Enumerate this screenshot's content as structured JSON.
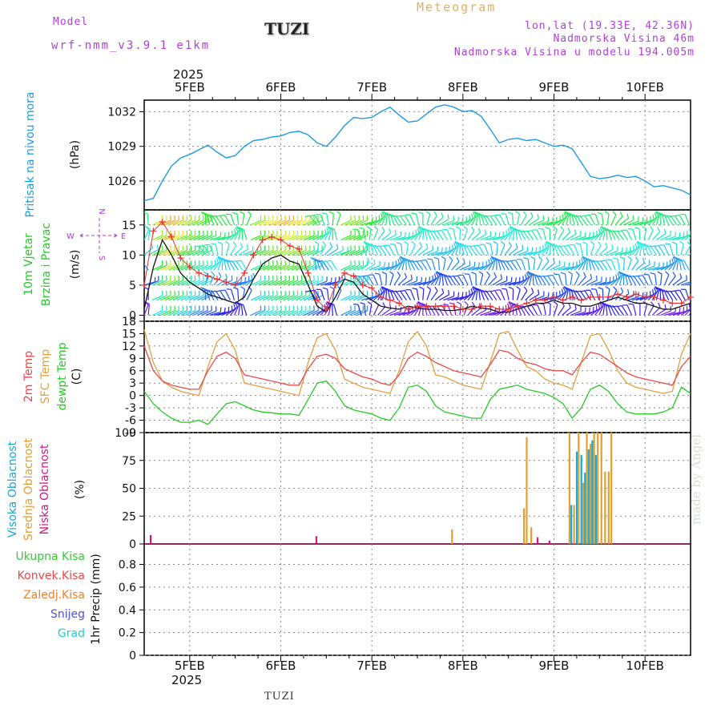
{
  "header": {
    "model_label": "Model",
    "model_name": "wrf-nmm_v3.9.1 e1km",
    "station": "TUZI",
    "title": "Meteogram",
    "lonlat": "lon,lat (19.33E, 42.36N)",
    "elevation": "Nadmorska Visina 46m",
    "model_elevation": "Nadmorska Visina u modelu 194.005m"
  },
  "footer": {
    "station": "TUZI",
    "watermark": "made by Angel"
  },
  "time_axis": {
    "year": "2025",
    "days": [
      "5FEB",
      "6FEB",
      "7FEB",
      "8FEB",
      "9FEB",
      "10FEB"
    ]
  },
  "colors": {
    "pressure": "#1e9be0",
    "temp2m": "#e84a4a",
    "sfc_temp": "#e0a040",
    "dewpoint": "#28c828",
    "high_cloud": "#18a8d8",
    "mid_cloud": "#e0a030",
    "low_cloud": "#d01880",
    "wind_gust": "#e83030",
    "wind_speed": "#111111",
    "grid": "#888888",
    "legend_purple": "#b040d8"
  },
  "chart_data": [
    {
      "type": "line",
      "ylabel": "Pritisak na nivou mora",
      "unit": "(hPa)",
      "yticks": [
        1026,
        1029,
        1032
      ],
      "ylim": [
        1023.5,
        1033
      ],
      "x_days": [
        4.5,
        4.6,
        4.7,
        4.8,
        4.9,
        5.0,
        5.1,
        5.2,
        5.3,
        5.4,
        5.5,
        5.6,
        5.7,
        5.8,
        5.9,
        6.0,
        6.1,
        6.2,
        6.3,
        6.4,
        6.5,
        6.6,
        6.7,
        6.8,
        6.9,
        7.0,
        7.1,
        7.2,
        7.3,
        7.4,
        7.5,
        7.6,
        7.7,
        7.8,
        7.9,
        8.0,
        8.1,
        8.2,
        8.3,
        8.4,
        8.5,
        8.6,
        8.7,
        8.8,
        8.9,
        9.0,
        9.1,
        9.2,
        9.3,
        9.4,
        9.5,
        9.6,
        9.7,
        9.8,
        9.9,
        10.0,
        10.1,
        10.2,
        10.3,
        10.4,
        10.5
      ],
      "series": [
        {
          "color_key": "pressure",
          "values": [
            1024.3,
            1024.5,
            1026.0,
            1027.3,
            1028.0,
            1028.3,
            1028.7,
            1029.1,
            1028.5,
            1028.0,
            1028.2,
            1029.0,
            1029.5,
            1029.6,
            1029.8,
            1029.9,
            1030.2,
            1030.3,
            1030.0,
            1029.3,
            1029.0,
            1029.8,
            1030.8,
            1031.5,
            1031.4,
            1031.5,
            1032.0,
            1032.4,
            1031.7,
            1031.1,
            1031.2,
            1031.8,
            1032.4,
            1032.6,
            1032.4,
            1032.0,
            1032.1,
            1031.6,
            1030.5,
            1029.3,
            1029.6,
            1029.7,
            1029.5,
            1029.6,
            1029.3,
            1029.0,
            1029.1,
            1028.8,
            1027.6,
            1026.4,
            1026.2,
            1026.3,
            1026.5,
            1026.3,
            1026.4,
            1026.0,
            1025.5,
            1025.6,
            1025.4,
            1025.2,
            1024.8
          ]
        }
      ]
    },
    {
      "type": "line",
      "ylabel_lines": [
        "10m Vjetar",
        "Brzina i Pravac"
      ],
      "unit": "(m/s)",
      "yticks": [
        0,
        5,
        10,
        15
      ],
      "ylim": [
        -1,
        17.5
      ],
      "compass": {
        "n": "N",
        "s": "S",
        "w": "W",
        "e": "E"
      },
      "barb_levels_ms": [
        0,
        2.5,
        5,
        7.5,
        10,
        12.5,
        15,
        17.5
      ],
      "x_days": [
        4.5,
        4.6,
        4.7,
        4.8,
        4.9,
        5.0,
        5.1,
        5.2,
        5.3,
        5.4,
        5.5,
        5.6,
        5.7,
        5.8,
        5.9,
        6.0,
        6.1,
        6.2,
        6.3,
        6.4,
        6.5,
        6.6,
        6.7,
        6.8,
        6.9,
        7.0,
        7.1,
        7.2,
        7.3,
        7.4,
        7.5,
        7.6,
        7.7,
        7.8,
        7.9,
        8.0,
        8.1,
        8.2,
        8.3,
        8.4,
        8.5,
        8.6,
        8.7,
        8.8,
        8.9,
        9.0,
        9.1,
        9.2,
        9.3,
        9.4,
        9.5,
        9.6,
        9.7,
        9.8,
        9.9,
        10.0,
        10.1,
        10.2,
        10.3,
        10.4,
        10.5
      ],
      "series": [
        {
          "color_key": "wind_speed",
          "values": [
            1.0,
            8.0,
            12.5,
            10.0,
            7.0,
            5.5,
            4.5,
            3.5,
            3.0,
            2.5,
            2.0,
            3.0,
            6.0,
            8.5,
            9.5,
            10.0,
            9.0,
            8.5,
            5.0,
            1.5,
            0.5,
            3.0,
            6.0,
            5.5,
            3.5,
            2.5,
            1.5,
            1.2,
            1.0,
            1.5,
            1.2,
            1.0,
            1.0,
            0.8,
            0.8,
            1.0,
            1.5,
            1.2,
            1.0,
            0.5,
            0.5,
            1.0,
            1.5,
            2.0,
            2.0,
            2.5,
            2.0,
            2.0,
            1.5,
            1.5,
            2.0,
            2.5,
            3.0,
            2.5,
            2.0,
            2.0,
            1.5,
            1.0,
            1.0,
            1.5,
            2.0
          ]
        },
        {
          "color_key": "wind_gust",
          "marker": "+",
          "values": [
            5.0,
            14.0,
            15.5,
            13.0,
            9.5,
            8.0,
            7.0,
            6.5,
            6.0,
            5.5,
            5.0,
            7.0,
            10.0,
            12.5,
            13.0,
            12.5,
            11.5,
            11.0,
            7.0,
            2.5,
            1.0,
            5.0,
            7.0,
            6.5,
            5.0,
            4.5,
            3.0,
            2.5,
            2.0,
            1.0,
            1.5,
            1.5,
            1.5,
            1.5,
            1.5,
            1.0,
            1.0,
            1.5,
            1.5,
            1.0,
            1.0,
            1.5,
            2.0,
            2.5,
            2.5,
            3.0,
            2.5,
            3.0,
            2.5,
            3.0,
            3.0,
            3.0,
            3.5,
            3.0,
            3.5,
            3.0,
            3.0,
            2.5,
            2.0,
            2.0,
            3.0
          ]
        }
      ]
    },
    {
      "type": "line",
      "ylabel_lines": [
        {
          "text": "2m Temp",
          "color_key": "temp2m"
        },
        {
          "text": "SFC Temp",
          "color_key": "sfc_temp"
        },
        {
          "text": "dewpt Temp",
          "color_key": "dewpoint"
        }
      ],
      "unit": "(C)",
      "yticks": [
        -9,
        -6,
        -3,
        0,
        3,
        6,
        9,
        12,
        15,
        18
      ],
      "ylim": [
        -9,
        18
      ],
      "x_days": [
        4.5,
        4.6,
        4.7,
        4.8,
        4.9,
        5.0,
        5.1,
        5.2,
        5.3,
        5.4,
        5.5,
        5.6,
        5.7,
        5.8,
        5.9,
        6.0,
        6.1,
        6.2,
        6.3,
        6.4,
        6.5,
        6.6,
        6.7,
        6.8,
        6.9,
        7.0,
        7.1,
        7.2,
        7.3,
        7.4,
        7.5,
        7.6,
        7.7,
        7.8,
        7.9,
        8.0,
        8.1,
        8.2,
        8.3,
        8.4,
        8.5,
        8.6,
        8.7,
        8.8,
        8.9,
        9.0,
        9.1,
        9.2,
        9.3,
        9.4,
        9.5,
        9.6,
        9.7,
        9.8,
        9.9,
        10.0,
        10.1,
        10.2,
        10.3,
        10.4,
        10.5
      ],
      "series": [
        {
          "color_key": "temp2m",
          "values": [
            12.0,
            6.0,
            3.5,
            2.5,
            2.0,
            1.5,
            1.5,
            6.0,
            9.5,
            10.5,
            9.0,
            5.0,
            4.5,
            4.0,
            3.5,
            3.0,
            2.5,
            2.5,
            6.5,
            9.5,
            10.0,
            9.0,
            6.5,
            5.5,
            4.5,
            4.0,
            3.0,
            2.5,
            5.0,
            9.0,
            10.5,
            9.5,
            8.0,
            7.0,
            6.0,
            5.5,
            5.0,
            4.5,
            7.5,
            11.0,
            10.5,
            9.0,
            8.0,
            7.5,
            6.5,
            6.0,
            6.0,
            5.0,
            8.0,
            10.5,
            10.0,
            8.5,
            7.0,
            5.5,
            4.5,
            4.0,
            3.5,
            3.0,
            2.5,
            7.0,
            9.5
          ]
        },
        {
          "color_key": "sfc_temp",
          "values": [
            16.0,
            8.0,
            3.5,
            2.0,
            1.0,
            0.5,
            0.0,
            7.0,
            13.0,
            15.0,
            11.0,
            3.0,
            2.5,
            2.0,
            1.5,
            1.0,
            0.5,
            0.0,
            8.0,
            14.0,
            15.0,
            11.0,
            4.0,
            3.0,
            2.0,
            1.5,
            1.0,
            0.5,
            6.0,
            13.0,
            15.5,
            12.0,
            5.0,
            4.5,
            3.5,
            2.5,
            2.0,
            1.5,
            8.0,
            15.0,
            15.5,
            11.0,
            7.0,
            6.0,
            4.0,
            3.0,
            2.5,
            1.5,
            8.0,
            14.5,
            15.0,
            11.0,
            6.0,
            3.0,
            2.0,
            1.5,
            1.0,
            0.5,
            1.0,
            10.0,
            15.0
          ]
        },
        {
          "color_key": "dewpoint",
          "values": [
            1.0,
            -2.0,
            -4.0,
            -5.5,
            -6.5,
            -6.5,
            -6.0,
            -7.0,
            -4.5,
            -2.0,
            -1.5,
            -2.5,
            -3.5,
            -4.0,
            -4.2,
            -4.5,
            -4.5,
            -4.8,
            -1.0,
            3.0,
            3.5,
            1.0,
            -2.5,
            -3.5,
            -4.0,
            -4.5,
            -5.5,
            -6.0,
            -3.0,
            2.0,
            2.5,
            1.0,
            -2.5,
            -4.0,
            -4.5,
            -5.0,
            -5.5,
            -5.5,
            -1.0,
            1.5,
            2.0,
            2.5,
            1.5,
            1.0,
            0.5,
            -0.5,
            -2.0,
            -5.5,
            -3.0,
            1.5,
            2.5,
            1.0,
            -2.0,
            -4.0,
            -4.5,
            -4.5,
            -4.5,
            -4.0,
            -3.0,
            2.0,
            0.5
          ]
        }
      ]
    },
    {
      "type": "bar",
      "ylabel_lines": [
        {
          "text": "Visoka Oblacnost",
          "color_key": "high_cloud"
        },
        {
          "text": "Srednja Oblacnost",
          "color_key": "mid_cloud"
        },
        {
          "text": "Niska Oblacnost",
          "color_key": "low_cloud"
        }
      ],
      "unit": "(%)",
      "yticks": [
        0,
        25,
        50,
        75,
        100
      ],
      "ylim": [
        0,
        100
      ],
      "series": [
        {
          "color_key": "mid_cloud",
          "x_days": [
            7.88,
            8.67,
            8.7,
            8.75,
            9.17,
            9.22,
            9.27,
            9.32,
            9.36,
            9.4,
            9.44,
            9.48,
            9.52,
            9.56,
            9.6,
            9.63
          ],
          "values": [
            13,
            32,
            96,
            15,
            100,
            35,
            100,
            55,
            100,
            90,
            100,
            100,
            100,
            65,
            65,
            100
          ]
        },
        {
          "color_key": "high_cloud",
          "x_days": [
            9.19,
            9.25,
            9.3,
            9.34,
            9.38,
            9.42,
            9.46
          ],
          "values": [
            35,
            83,
            80,
            64,
            85,
            93,
            80
          ]
        },
        {
          "color_key": "low_cloud",
          "x_days": [
            4.57,
            6.39,
            8.82,
            8.95
          ],
          "values": [
            8,
            7,
            6,
            3
          ]
        }
      ]
    },
    {
      "type": "bar",
      "ylabel": "1hr Precip",
      "unit": "(mm)",
      "yticks": [
        0,
        0.2,
        0.4,
        0.6,
        0.8
      ],
      "ylim": [
        0,
        0.98
      ],
      "legend": [
        {
          "text": "Ukupna Kisa",
          "color": "#38c838"
        },
        {
          "text": "Konvek.Kisa",
          "color": "#e84848"
        },
        {
          "text": "Zaledj.Kisa",
          "color": "#f08030"
        },
        {
          "text": "Snijeg",
          "color": "#5050e0"
        },
        {
          "text": "Grad",
          "color": "#30c8c8"
        }
      ],
      "series": []
    }
  ]
}
